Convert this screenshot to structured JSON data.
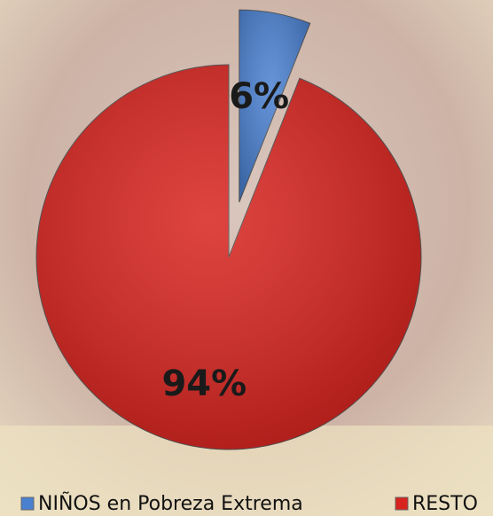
{
  "chart_data": {
    "type": "pie",
    "categories": [
      "NIÑOS en Pobreza Extrema",
      "RESTO"
    ],
    "values": [
      6,
      94
    ],
    "value_labels": [
      "6%",
      "94%"
    ],
    "colors": [
      "#4a80d0",
      "#d8231e"
    ],
    "legend": "bottom"
  }
}
